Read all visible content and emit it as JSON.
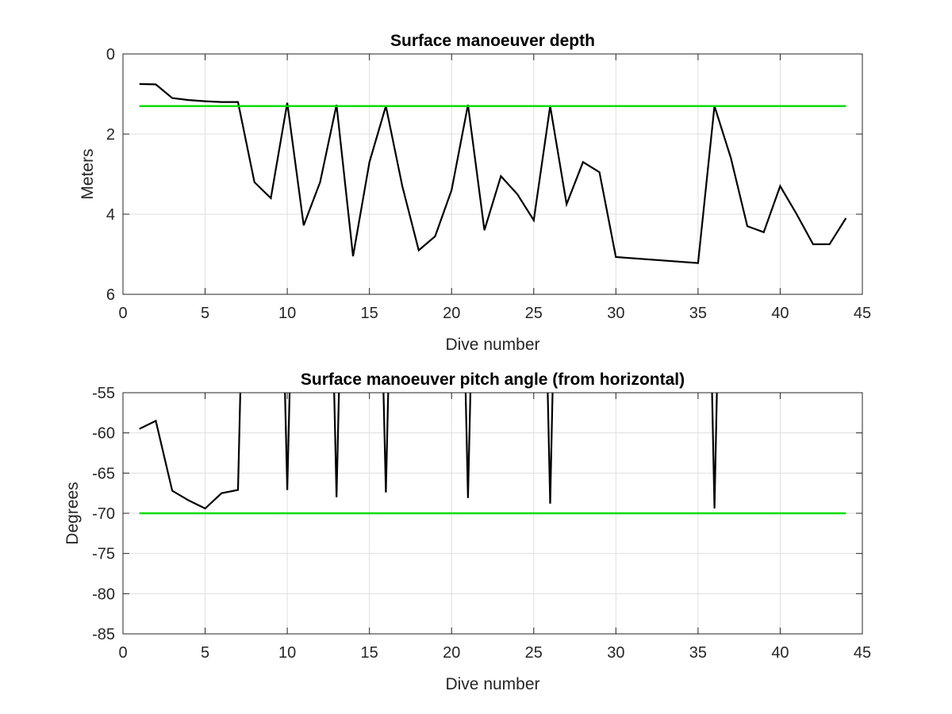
{
  "chart_data": [
    {
      "type": "line",
      "title": "Surface manoeuver depth",
      "xlabel": "Dive number",
      "ylabel": "Meters",
      "xlim": [
        0,
        45
      ],
      "ylim": [
        0,
        6
      ],
      "y_reversed": true,
      "grid": true,
      "xticks": [
        "0",
        "5",
        "10",
        "15",
        "20",
        "25",
        "30",
        "35",
        "40",
        "45"
      ],
      "yticks": [
        "0",
        "2",
        "4",
        "6"
      ],
      "series": [
        {
          "color": "#000000",
          "x": [
            1,
            2,
            3,
            4,
            5,
            6,
            7,
            8,
            9,
            10,
            11,
            12,
            13,
            14,
            15,
            16,
            17,
            18,
            19,
            20,
            21,
            22,
            23,
            24,
            25,
            26,
            27,
            28,
            29,
            30,
            35,
            36,
            37,
            38,
            39,
            40,
            41,
            42,
            43,
            44
          ],
          "values": [
            0.75,
            0.76,
            1.1,
            1.15,
            1.18,
            1.2,
            1.2,
            3.2,
            3.6,
            1.22,
            4.28,
            3.2,
            1.27,
            5.05,
            2.7,
            1.3,
            3.3,
            4.9,
            4.55,
            3.4,
            1.27,
            4.4,
            3.05,
            3.5,
            4.15,
            1.3,
            3.75,
            2.7,
            2.95,
            5.07,
            5.22,
            1.3,
            2.6,
            4.3,
            4.45,
            3.3,
            4.0,
            4.75,
            4.75,
            4.1
          ]
        },
        {
          "color": "#00dd00",
          "x": [
            1,
            44
          ],
          "values": [
            1.3,
            1.3
          ]
        }
      ]
    },
    {
      "type": "line",
      "title": "Surface manoeuver pitch angle (from horizontal)",
      "xlabel": "Dive number",
      "ylabel": "Degrees",
      "xlim": [
        0,
        45
      ],
      "ylim": [
        -85,
        -55
      ],
      "grid": true,
      "xticks": [
        "0",
        "5",
        "10",
        "15",
        "20",
        "25",
        "30",
        "35",
        "40",
        "45"
      ],
      "yticks": [
        "-55",
        "-60",
        "-65",
        "-70",
        "-75",
        "-80",
        "-85"
      ],
      "series": [
        {
          "color": "#000000",
          "x": [
            1,
            2,
            3,
            4,
            5,
            6,
            7,
            7.2,
            9.8,
            10,
            10.2,
            12.8,
            13,
            13.2,
            15.8,
            16,
            16.2,
            20.8,
            21,
            21.2,
            25.8,
            26,
            26.2,
            35.8,
            36,
            36.2
          ],
          "values": [
            -59.5,
            -58.5,
            -67.2,
            -68.4,
            -69.4,
            -67.5,
            -67.1,
            -50,
            -50,
            -67.1,
            -50,
            -50,
            -68,
            -50,
            -50,
            -67.4,
            -50,
            -50,
            -68.1,
            -50,
            -50,
            -68.8,
            -50,
            -50,
            -69.4,
            -50
          ]
        },
        {
          "color": "#00dd00",
          "x": [
            1,
            44
          ],
          "values": [
            -70,
            -70
          ]
        }
      ]
    }
  ]
}
